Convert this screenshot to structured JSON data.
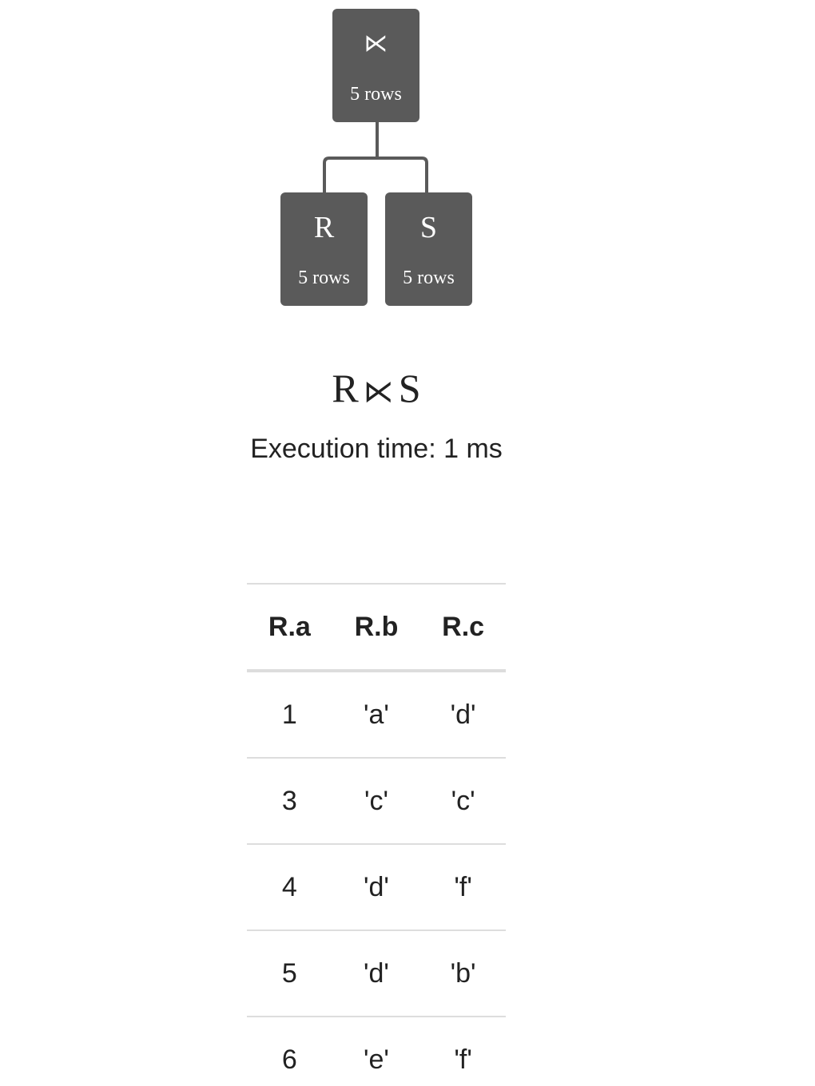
{
  "tree": {
    "root": {
      "symbol": "⋉",
      "rows": "5 rows"
    },
    "left": {
      "symbol": "R",
      "rows": "5 rows"
    },
    "right": {
      "symbol": "S",
      "rows": "5 rows"
    }
  },
  "expression": {
    "left": "R",
    "operator": "⋉",
    "right": "S"
  },
  "execution": {
    "label": "Execution time:",
    "value": "1 ms"
  },
  "table": {
    "headers": [
      "R.a",
      "R.b",
      "R.c"
    ],
    "rows": [
      [
        "1",
        "'a'",
        "'d'"
      ],
      [
        "3",
        "'c'",
        "'c'"
      ],
      [
        "4",
        "'d'",
        "'f'"
      ],
      [
        "5",
        "'d'",
        "'b'"
      ],
      [
        "6",
        "'e'",
        "'f'"
      ]
    ]
  }
}
